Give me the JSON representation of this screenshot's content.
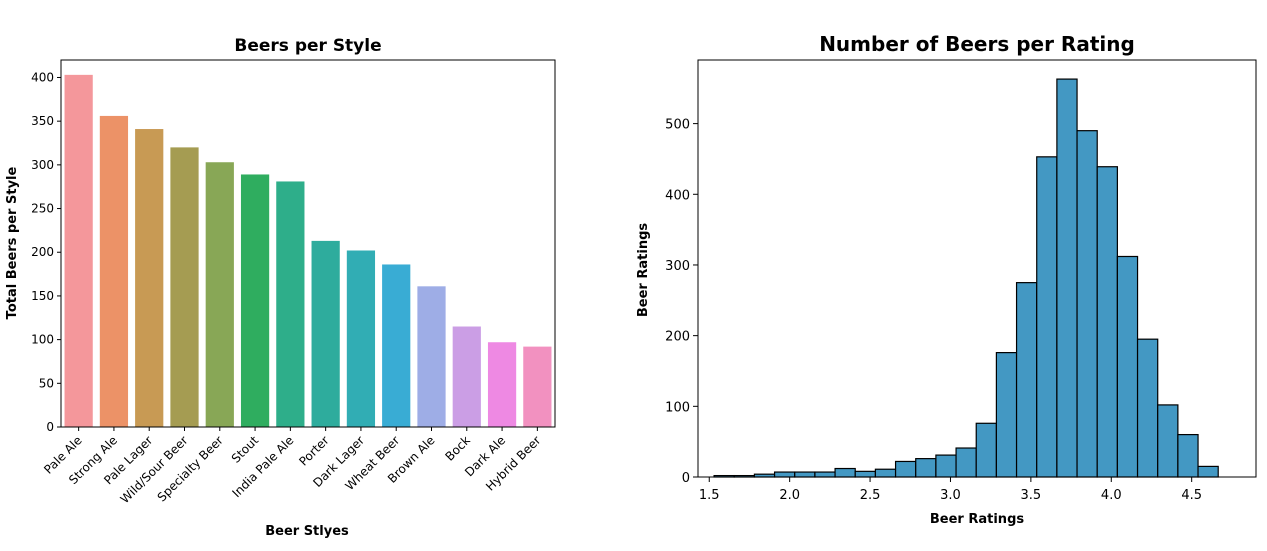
{
  "chart_data": [
    {
      "type": "bar",
      "title": "Beers per Style",
      "xlabel": "Beer Stlyes",
      "ylabel": "Total Beers per Style",
      "ylim": [
        0,
        420
      ],
      "yticks": [
        0,
        50,
        100,
        150,
        200,
        250,
        300,
        350,
        400
      ],
      "categories": [
        "Pale Ale",
        "Strong Ale",
        "Pale Lager",
        "Wild/Sour Beer",
        "Specialty Beer",
        "Stout",
        "India Pale Ale",
        "Porter",
        "Dark Lager",
        "Wheat Beer",
        "Brown Ale",
        "Bock",
        "Dark Ale",
        "Hybrid Beer"
      ],
      "values": [
        403,
        356,
        341,
        320,
        303,
        289,
        281,
        213,
        202,
        186,
        161,
        115,
        97,
        92
      ],
      "colors": [
        "#f4979b",
        "#ec9267",
        "#c89a54",
        "#a59c52",
        "#88a756",
        "#2fad5f",
        "#2eae8a",
        "#2eac9d",
        "#31adb4",
        "#39acd4",
        "#9eade6",
        "#cb9ee5",
        "#ee89e3",
        "#f291c0"
      ],
      "grid": false
    },
    {
      "type": "bar",
      "subtype": "histogram",
      "title": "Number of Beers per Rating",
      "xlabel": "Beer Ratings",
      "ylabel": "Beer Ratings",
      "xlim": [
        1.43,
        4.9
      ],
      "ylim": [
        0,
        590
      ],
      "xticks": [
        "1.5",
        "2.0",
        "2.5",
        "3.0",
        "3.5",
        "4.0",
        "4.5"
      ],
      "yticks": [
        0,
        100,
        200,
        300,
        400,
        500
      ],
      "bin_start": 1.53,
      "bin_width": 0.1254,
      "values": [
        2,
        2,
        4,
        7,
        7,
        7,
        12,
        8,
        11,
        22,
        26,
        31,
        41,
        76,
        176,
        275,
        453,
        563,
        490,
        439,
        312,
        195,
        102,
        60,
        15
      ],
      "color": "#4398c3",
      "edgecolor": "#000000",
      "grid": false
    }
  ]
}
